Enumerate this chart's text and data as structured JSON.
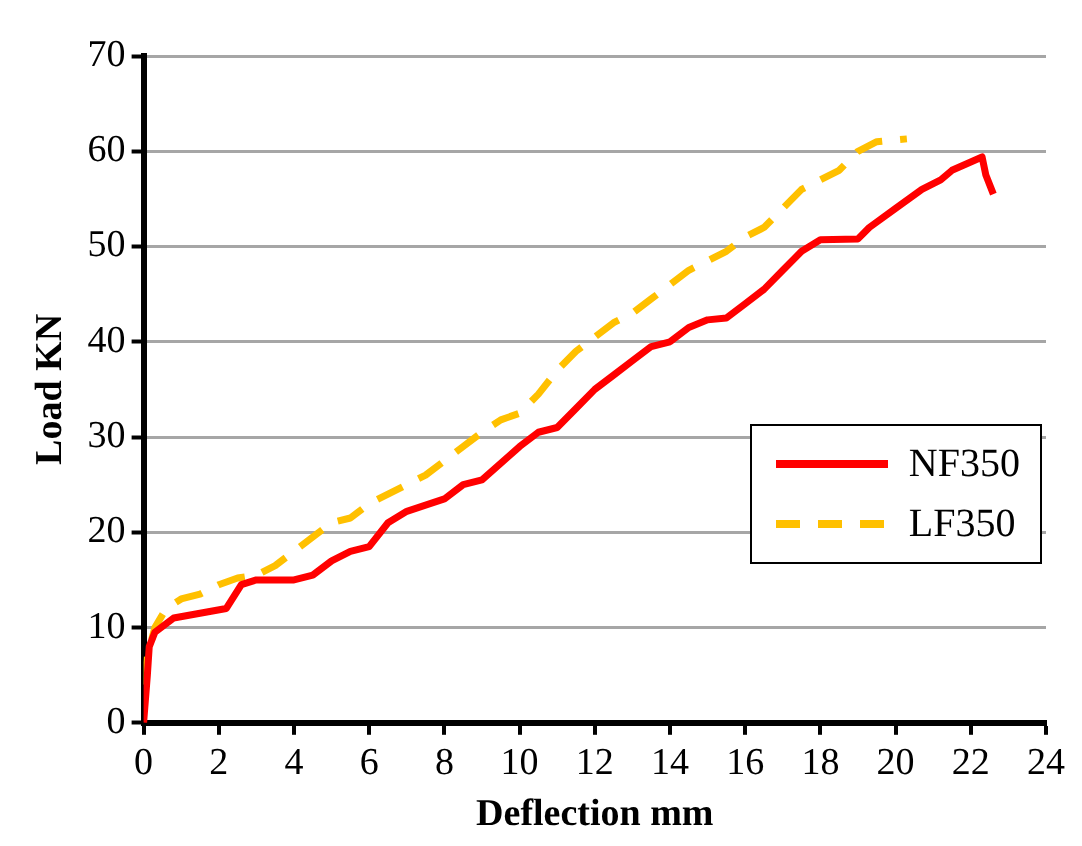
{
  "chart_data": {
    "type": "line",
    "xlabel": "Deflection mm",
    "ylabel": "Load KN",
    "xlim": [
      0,
      24
    ],
    "xticks": [
      0,
      2,
      4,
      6,
      8,
      10,
      12,
      14,
      16,
      18,
      20,
      22,
      24
    ],
    "ylim": [
      0,
      70
    ],
    "yticks": [
      0,
      10,
      20,
      30,
      40,
      50,
      60,
      70
    ],
    "grid": "y",
    "legend": "right",
    "marker": "none",
    "series": [
      {
        "name": "NF350",
        "color": "#ff0000",
        "line_style": "solid",
        "x": [
          0,
          0.1,
          0.15,
          0.3,
          0.8,
          1.5,
          2.2,
          2.6,
          3,
          4,
          4.5,
          5,
          5.5,
          6,
          6.5,
          7,
          8,
          8.5,
          9,
          10,
          10.5,
          11,
          11.5,
          12,
          12.5,
          13,
          13.5,
          14,
          14.5,
          15,
          15.5,
          16,
          16.5,
          17,
          17.5,
          18,
          19,
          19.3,
          20,
          20.7,
          21.2,
          21.5,
          22.3,
          22.4,
          22.6
        ],
        "values": [
          0,
          5,
          8,
          9.5,
          11,
          11.5,
          12,
          14.5,
          15,
          15,
          15.5,
          17,
          18,
          18.5,
          21,
          22.2,
          23.5,
          25,
          25.5,
          29,
          30.5,
          31,
          33,
          35,
          36.5,
          38,
          39.5,
          40,
          41.5,
          42.3,
          42.5,
          44,
          45.5,
          47.5,
          49.5,
          50.7,
          50.8,
          52,
          54,
          56,
          57,
          58,
          59.4,
          57.5,
          55.5
        ]
      },
      {
        "name": "LF350",
        "color": "#ffc000",
        "line_style": "dashed",
        "x": [
          0,
          0.1,
          0.3,
          0.6,
          1,
          1.5,
          2,
          2.5,
          3,
          3.5,
          4,
          4.5,
          5,
          5.5,
          6,
          6.5,
          7,
          7.5,
          8,
          8.5,
          9,
          9.5,
          10,
          10.5,
          11,
          11.5,
          12,
          12.5,
          13,
          13.5,
          14,
          14.5,
          15,
          15.5,
          16,
          16.5,
          17,
          17.5,
          18,
          18.5,
          19,
          19.5,
          20,
          20.3
        ],
        "values": [
          4,
          7,
          10,
          12,
          13,
          13.5,
          14.5,
          15.2,
          15.5,
          16.5,
          18,
          19.5,
          21,
          21.5,
          23,
          24,
          25,
          26,
          27.5,
          29,
          30.5,
          31.8,
          32.5,
          34.5,
          37,
          39,
          40.5,
          42,
          43,
          44.5,
          46,
          47.5,
          48.5,
          49.5,
          51,
          52,
          54,
          56,
          57,
          58,
          60,
          61,
          61.2,
          61.3
        ]
      }
    ]
  }
}
